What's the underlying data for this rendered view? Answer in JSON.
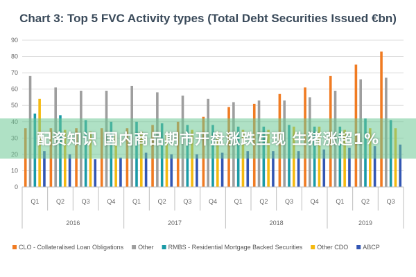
{
  "chart_data": {
    "type": "bar",
    "title": "Chart 3: Top 5 FVC Activity types (Total Debt Securities Issued €bn)",
    "ylim": [
      0,
      90
    ],
    "yticks": [
      0,
      10,
      20,
      30,
      40,
      50,
      60,
      70,
      80,
      90
    ],
    "grid": true,
    "legend_position": "bottom",
    "categories": [
      "Q1",
      "Q2",
      "Q3",
      "Q4",
      "Q1",
      "Q2",
      "Q3",
      "Q4",
      "Q1",
      "Q2",
      "Q3",
      "Q4",
      "Q1",
      "Q2",
      "Q3"
    ],
    "years": [
      {
        "label": "2016",
        "count": 4
      },
      {
        "label": "2017",
        "count": 4
      },
      {
        "label": "2018",
        "count": 4
      },
      {
        "label": "2019",
        "count": 3
      }
    ],
    "series": [
      {
        "name": "CLO - Collateralised Loan Obligations",
        "color": "#f07b22",
        "values": [
          36,
          36,
          36,
          36,
          36,
          38,
          40,
          43,
          49,
          51,
          57,
          61,
          68,
          75,
          83
        ]
      },
      {
        "name": "Other",
        "color": "#9e9e9e",
        "values": [
          68,
          61,
          59,
          59,
          62,
          58,
          56,
          54,
          52,
          53,
          53,
          55,
          59,
          66,
          67
        ]
      },
      {
        "name": "RMBS - Residential Mortgage Backed Securities",
        "color": "#1a9aa6",
        "values": [
          45,
          44,
          41,
          40,
          40,
          39,
          38,
          38,
          37,
          37,
          38,
          37,
          37,
          42,
          41
        ]
      },
      {
        "name": "Other CDO",
        "color": "#f5b90f",
        "values": [
          54,
          35,
          34,
          32,
          34,
          33,
          35,
          34,
          35,
          35,
          37,
          37,
          35,
          36,
          36
        ]
      },
      {
        "name": "ABCP",
        "color": "#3356b3",
        "values": [
          22,
          20,
          17,
          18,
          21,
          20,
          20,
          21,
          22,
          22,
          22,
          23,
          24,
          25,
          26
        ]
      }
    ]
  },
  "overlay": {
    "text": "配资知识 国内商品期市开盘涨跌互现 生猪涨超1%"
  }
}
